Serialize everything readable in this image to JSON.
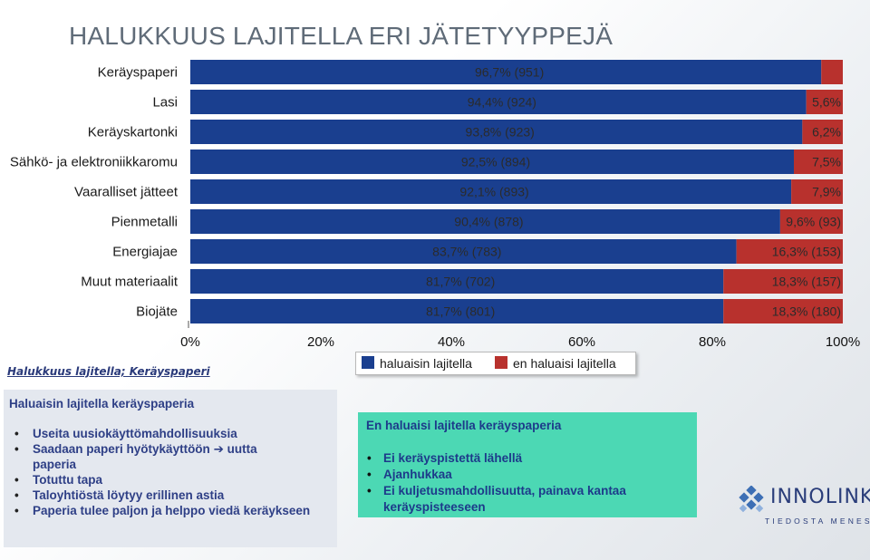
{
  "title": "HALUKKUUS LAJITELLA ERI JÄTETYYPPEJÄ",
  "subtitle": "Halukkuus lajitella; Keräyspaperi",
  "colors": {
    "willing": "#1a3f8f",
    "unwilling": "#b8312d"
  },
  "chart_data": {
    "type": "bar",
    "orientation": "horizontal",
    "stacked": true,
    "categories": [
      "Keräyspaperi",
      "Lasi",
      "Keräyskartonki",
      "Sähkö- ja elektroniikkaromu",
      "Vaaralliset jätteet",
      "Pienmetalli",
      "Energiajae",
      "Muut materiaalit",
      "Biojäte"
    ],
    "series": [
      {
        "name": "haluaisin lajitella",
        "values": [
          96.7,
          94.4,
          93.8,
          92.5,
          92.1,
          90.4,
          83.7,
          81.7,
          81.7
        ],
        "labels": [
          "96,7% (951)",
          "94,4% (924)",
          "93,8% (923)",
          "92,5% (894)",
          "92,1% (893)",
          "90,4% (878)",
          "83,7% (783)",
          "81,7% (702)",
          "81,7% (801)"
        ]
      },
      {
        "name": "en haluaisi lajitella",
        "values": [
          3.3,
          5.6,
          6.2,
          7.5,
          7.9,
          9.6,
          16.3,
          18.3,
          18.3
        ],
        "labels": [
          "",
          "5,6%",
          "6,2%",
          "7,5%",
          "7,9%",
          "9,6% (93)",
          "16,3% (153)",
          "18,3% (157)",
          "18,3% (180)"
        ]
      }
    ],
    "xlim": [
      0,
      100
    ],
    "xticks": [
      "0%",
      "20%",
      "40%",
      "60%",
      "80%",
      "100%"
    ],
    "legend_position": "bottom",
    "grid": false
  },
  "willing_panel": {
    "heading": "Haluaisin lajitella keräyspaperia",
    "items": [
      "Useita uusiokäyttömahdollisuuksia",
      "Saadaan paperi hyötykäyttöön",
      "paperia",
      "Totuttu tapa",
      "Taloyhtiöstä löytyy erillinen astia",
      "Paperia tulee paljon ja helppo viedä keräykseen"
    ],
    "arrow_text": "uutta"
  },
  "unwilling_panel": {
    "heading": "En haluaisi lajitella keräyspaperia",
    "items": [
      "Ei keräyspistettä lähellä",
      "Ajanhukkaa",
      "Ei kuljetusmahdollisuutta, painava kantaa keräyspisteeseen"
    ]
  },
  "logo": {
    "name": "INNOLINK",
    "tagline": "TIEDOSTA MENESTYS"
  }
}
